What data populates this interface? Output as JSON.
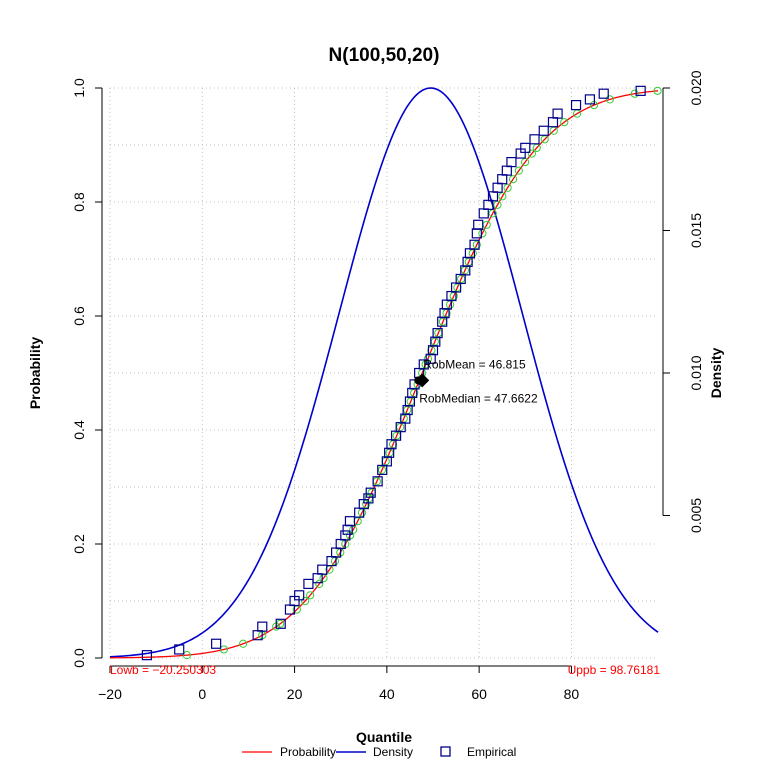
{
  "chart_data": {
    "type": "line",
    "title": "N(100,50,20)",
    "xlabel": "Quantile",
    "ylabel": "Probability",
    "y2label": "Density",
    "xlim": [
      -20,
      98.76181
    ],
    "ylim": [
      0,
      1
    ],
    "y2lim": [
      0,
      0.02
    ],
    "x_ticks": [
      -20,
      0,
      20,
      40,
      60,
      80
    ],
    "y_ticks": [
      0.0,
      0.2,
      0.4,
      0.6,
      0.8,
      1.0
    ],
    "y_tick_labels": [
      "0.0",
      "0.2",
      "0.4",
      "0.6",
      "0.8",
      "1.0"
    ],
    "y2_ticks": [
      0.005,
      0.01,
      0.015,
      0.02
    ],
    "y2_tick_labels": [
      "0.005",
      "0.010",
      "0.015",
      "0.020"
    ],
    "grid": true,
    "legend_position": "bottom",
    "colors": {
      "probability": "#ff0000",
      "density": "#0000cc",
      "empirical": "#00008b",
      "fitted": "#33cc33",
      "bounds": "#ff0000"
    },
    "distribution": {
      "mean": 47.66,
      "sd": 19.8
    },
    "density_peak_location": 49.5,
    "lower_bound": {
      "value": -20.250303,
      "label": "Lowb = −20.250303"
    },
    "upper_bound": {
      "value": 98.76181,
      "label": "Uppb = 98.76181"
    },
    "rob_mean": {
      "value": 46.815,
      "label": "RobMean = 46.815"
    },
    "rob_median": {
      "value": 47.6622,
      "label": "RobMedian = 47.6622"
    },
    "legend": [
      {
        "name": "Probability",
        "symbol": "line",
        "color": "#ff0000"
      },
      {
        "name": "Density",
        "symbol": "line",
        "color": "#0000cc"
      },
      {
        "name": "Empirical",
        "symbol": "square",
        "color": "#00008b"
      }
    ],
    "empirical_points": [
      {
        "x": -12,
        "y": 0.005
      },
      {
        "x": -5,
        "y": 0.015
      },
      {
        "x": 3,
        "y": 0.025
      },
      {
        "x": 12,
        "y": 0.04
      },
      {
        "x": 13,
        "y": 0.055
      },
      {
        "x": 17,
        "y": 0.06
      },
      {
        "x": 19,
        "y": 0.085
      },
      {
        "x": 20,
        "y": 0.1
      },
      {
        "x": 21,
        "y": 0.11
      },
      {
        "x": 23,
        "y": 0.13
      },
      {
        "x": 25,
        "y": 0.14
      },
      {
        "x": 26,
        "y": 0.155
      },
      {
        "x": 28,
        "y": 0.17
      },
      {
        "x": 29,
        "y": 0.185
      },
      {
        "x": 30,
        "y": 0.2
      },
      {
        "x": 31,
        "y": 0.215
      },
      {
        "x": 31.5,
        "y": 0.225
      },
      {
        "x": 32,
        "y": 0.24
      },
      {
        "x": 34,
        "y": 0.255
      },
      {
        "x": 35,
        "y": 0.27
      },
      {
        "x": 36,
        "y": 0.28
      },
      {
        "x": 36.5,
        "y": 0.29
      },
      {
        "x": 38,
        "y": 0.31
      },
      {
        "x": 39,
        "y": 0.33
      },
      {
        "x": 40,
        "y": 0.345
      },
      {
        "x": 40.5,
        "y": 0.36
      },
      {
        "x": 41,
        "y": 0.375
      },
      {
        "x": 42,
        "y": 0.39
      },
      {
        "x": 43,
        "y": 0.405
      },
      {
        "x": 44,
        "y": 0.42
      },
      {
        "x": 44.5,
        "y": 0.435
      },
      {
        "x": 45,
        "y": 0.45
      },
      {
        "x": 45.5,
        "y": 0.465
      },
      {
        "x": 46,
        "y": 0.48
      },
      {
        "x": 47,
        "y": 0.5
      },
      {
        "x": 48,
        "y": 0.515
      },
      {
        "x": 49.5,
        "y": 0.525
      },
      {
        "x": 50,
        "y": 0.54
      },
      {
        "x": 50.5,
        "y": 0.555
      },
      {
        "x": 51,
        "y": 0.57
      },
      {
        "x": 52,
        "y": 0.59
      },
      {
        "x": 52.5,
        "y": 0.605
      },
      {
        "x": 53,
        "y": 0.62
      },
      {
        "x": 54,
        "y": 0.635
      },
      {
        "x": 55,
        "y": 0.65
      },
      {
        "x": 56,
        "y": 0.665
      },
      {
        "x": 57,
        "y": 0.68
      },
      {
        "x": 57.5,
        "y": 0.695
      },
      {
        "x": 58,
        "y": 0.71
      },
      {
        "x": 59,
        "y": 0.725
      },
      {
        "x": 59.5,
        "y": 0.745
      },
      {
        "x": 59.8,
        "y": 0.76
      },
      {
        "x": 61,
        "y": 0.78
      },
      {
        "x": 62,
        "y": 0.795
      },
      {
        "x": 63,
        "y": 0.81
      },
      {
        "x": 64,
        "y": 0.825
      },
      {
        "x": 65,
        "y": 0.84
      },
      {
        "x": 66,
        "y": 0.855
      },
      {
        "x": 67,
        "y": 0.87
      },
      {
        "x": 69,
        "y": 0.885
      },
      {
        "x": 70,
        "y": 0.895
      },
      {
        "x": 72,
        "y": 0.91
      },
      {
        "x": 74,
        "y": 0.925
      },
      {
        "x": 76,
        "y": 0.94
      },
      {
        "x": 77,
        "y": 0.955
      },
      {
        "x": 81,
        "y": 0.97
      },
      {
        "x": 84,
        "y": 0.98
      },
      {
        "x": 87,
        "y": 0.99
      },
      {
        "x": 95,
        "y": 0.995
      }
    ]
  }
}
